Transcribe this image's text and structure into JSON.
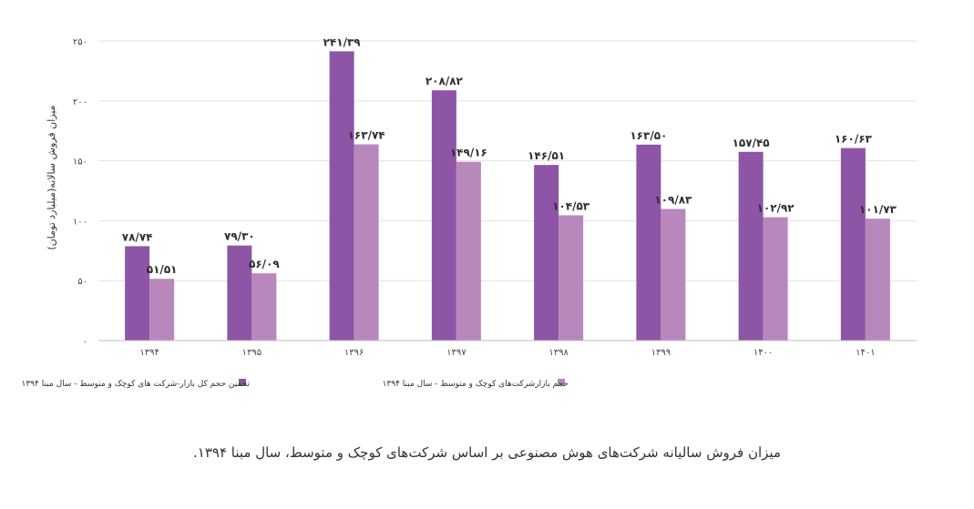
{
  "caption": "میزان فروش سالیانه شرکت‌های هوش مصنوعی بر اساس شرکت‌های کوچک و متوسط، سال مبنا ۱۳۹۴.",
  "chart_data": {
    "type": "bar",
    "ylabel": "میزان فروش سالانه(میلیارد تومان)",
    "ylim": [
      0,
      250
    ],
    "yticks": [
      0,
      50,
      100,
      150,
      200,
      250
    ],
    "ytick_labels": [
      "۰",
      "۵۰",
      "۱۰۰",
      "۱۵۰",
      "۲۰۰",
      "۲۵۰"
    ],
    "grid": true,
    "legend_position": "bottom",
    "categories": [
      "۱۳۹۴",
      "۱۳۹۵",
      "۱۳۹۶",
      "۱۳۹۷",
      "۱۳۹۸",
      "۱۳۹۹",
      "۱۴۰۰",
      "۱۴۰۱"
    ],
    "series": [
      {
        "name": "تخمین حجم کل بازار-شرکت های کوچک و متوسط - سال مبنا ۱۳۹۴",
        "color": "#8e54a6",
        "values": [
          78.74,
          79.3,
          241.39,
          208.82,
          146.51,
          163.5,
          157.45,
          160.63
        ],
        "labels": [
          "۷۸/۷۴",
          "۷۹/۳۰",
          "۲۴۱/۳۹",
          "۲۰۸/۸۲",
          "۱۴۶/۵۱",
          "۱۶۳/۵۰",
          "۱۵۷/۴۵",
          "۱۶۰/۶۳"
        ]
      },
      {
        "name": "حجم بازارشرکت‌های کوچک و متوسط - سال مبنا ۱۳۹۴",
        "color": "#b888bd",
        "values": [
          51.51,
          56.09,
          163.74,
          149.16,
          104.53,
          109.83,
          102.92,
          101.73
        ],
        "labels": [
          "۵۱/۵۱",
          "۵۶/۰۹",
          "۱۶۳/۷۴",
          "۱۴۹/۱۶",
          "۱۰۴/۵۳",
          "۱۰۹/۸۳",
          "۱۰۲/۹۲",
          "۱۰۱/۷۳"
        ]
      }
    ]
  }
}
